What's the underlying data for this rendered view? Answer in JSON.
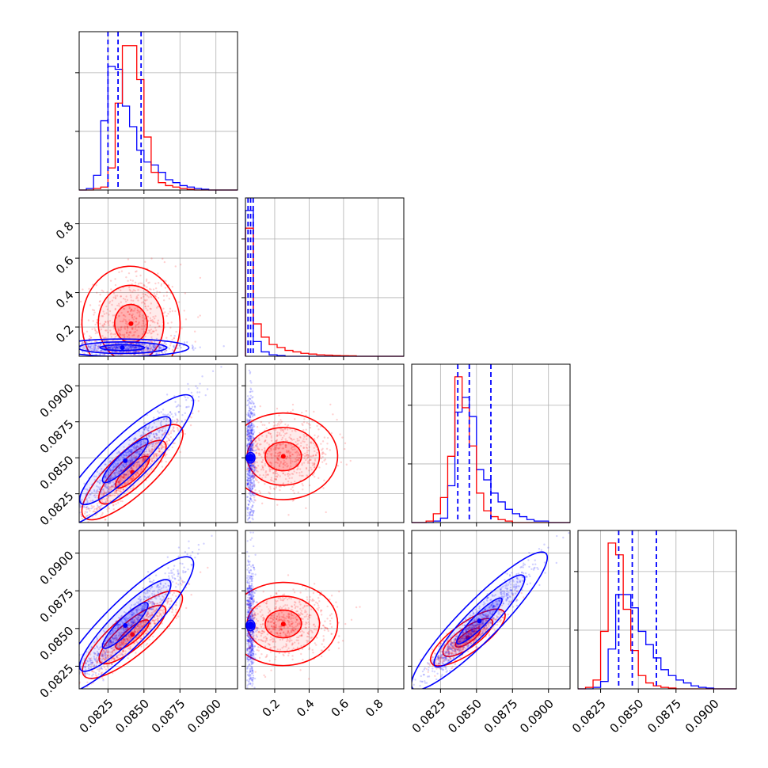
{
  "chart_data": {
    "type": "corner",
    "grid": true,
    "series": [
      {
        "color": "#0000ff"
      },
      {
        "color": "#ff0000"
      }
    ],
    "params": [
      {
        "range": [
          0.0805,
          0.0915
        ],
        "ticks": [
          0.0825,
          0.085,
          0.0875,
          0.09
        ],
        "tick_labels": [
          "0.0825",
          "0.0850",
          "0.0875",
          "0.0900"
        ]
      },
      {
        "range": [
          0.03,
          0.95
        ],
        "ticks": [
          0.2,
          0.4,
          0.6,
          0.8
        ],
        "tick_labels": [
          "0.2",
          "0.4",
          "0.6",
          "0.8"
        ]
      },
      {
        "range": [
          0.0805,
          0.0915
        ],
        "ticks": [
          0.0825,
          0.085,
          0.0875,
          0.09
        ],
        "tick_labels": [
          "0.0825",
          "0.0850",
          "0.0875",
          "0.0900"
        ]
      },
      {
        "range": [
          0.081,
          0.0915
        ],
        "ticks": [
          0.0825,
          0.085,
          0.0875,
          0.09
        ],
        "tick_labels": [
          "0.0825",
          "0.0850",
          "0.0875",
          "0.0900"
        ]
      }
    ],
    "histograms": [
      {
        "bins": [
          0.0805,
          0.081,
          0.0815,
          0.082,
          0.0825,
          0.083,
          0.0835,
          0.084,
          0.0845,
          0.085,
          0.0855,
          0.086,
          0.0865,
          0.087,
          0.0875,
          0.088,
          0.0885,
          0.089,
          0.0895,
          0.09,
          0.0905,
          0.091,
          0.0915
        ],
        "blue": [
          0,
          0.01,
          0.1,
          0.47,
          0.84,
          0.82,
          0.57,
          0.43,
          0.27,
          0.19,
          0.17,
          0.12,
          0.07,
          0.05,
          0.03,
          0.02,
          0.01,
          0.005,
          0,
          0,
          0,
          0
        ],
        "red": [
          0,
          0,
          0.01,
          0.02,
          0.15,
          0.59,
          0.98,
          0.98,
          0.75,
          0.36,
          0.12,
          0.05,
          0.03,
          0.02,
          0.01,
          0.005,
          0,
          0,
          0,
          0,
          0,
          0
        ],
        "quantiles": [
          0.0825,
          0.0832,
          0.0848
        ]
      },
      {
        "bins": [
          0.03,
          0.076,
          0.122,
          0.168,
          0.214,
          0.26,
          0.306,
          0.352,
          0.398,
          0.444,
          0.49,
          0.536,
          0.582,
          0.628,
          0.674,
          0.72,
          0.766,
          0.812,
          0.858,
          0.904,
          0.95
        ],
        "blue": [
          0.99,
          0.1,
          0.03,
          0.01,
          0.005,
          0,
          0,
          0,
          0,
          0,
          0,
          0,
          0,
          0,
          0,
          0,
          0,
          0,
          0,
          0
        ],
        "red": [
          0.87,
          0.22,
          0.13,
          0.08,
          0.06,
          0.04,
          0.03,
          0.02,
          0.015,
          0.01,
          0.008,
          0.005,
          0.004,
          0.003,
          0,
          0,
          0,
          0,
          0,
          0
        ],
        "quantiles": [
          0.045,
          0.06,
          0.075
        ]
      },
      {
        "bins": [
          0.0805,
          0.081,
          0.0815,
          0.082,
          0.0825,
          0.083,
          0.0835,
          0.084,
          0.0845,
          0.085,
          0.0855,
          0.086,
          0.0865,
          0.087,
          0.0875,
          0.088,
          0.0885,
          0.089,
          0.0895,
          0.09,
          0.0905,
          0.091,
          0.0915
        ],
        "blue": [
          0,
          0,
          0,
          0.01,
          0.03,
          0.25,
          0.75,
          0.85,
          0.72,
          0.36,
          0.29,
          0.2,
          0.14,
          0.09,
          0.06,
          0.04,
          0.02,
          0.01,
          0.01,
          0,
          0,
          0
        ],
        "red": [
          0,
          0,
          0.01,
          0.06,
          0.17,
          0.45,
          0.99,
          0.78,
          0.52,
          0.2,
          0.08,
          0.04,
          0.02,
          0.01,
          0,
          0,
          0,
          0,
          0,
          0,
          0,
          0
        ],
        "quantiles": [
          0.0837,
          0.0845,
          0.086
        ]
      },
      {
        "bins": [
          0.081,
          0.0815,
          0.082,
          0.0825,
          0.083,
          0.0835,
          0.084,
          0.0845,
          0.085,
          0.0855,
          0.086,
          0.0865,
          0.087,
          0.0875,
          0.088,
          0.0885,
          0.089,
          0.0895,
          0.09,
          0.0905,
          0.091,
          0.0915
        ],
        "blue": [
          0,
          0,
          0.01,
          0.05,
          0.27,
          0.64,
          0.64,
          0.55,
          0.39,
          0.3,
          0.21,
          0.13,
          0.09,
          0.06,
          0.04,
          0.02,
          0.01,
          0.005,
          0,
          0,
          0
        ],
        "red": [
          0,
          0.01,
          0.06,
          0.39,
          0.99,
          0.91,
          0.54,
          0.26,
          0.09,
          0.04,
          0.02,
          0.01,
          0.005,
          0,
          0,
          0,
          0,
          0,
          0,
          0,
          0
        ],
        "quantiles": [
          0.0837,
          0.0846,
          0.0862
        ]
      }
    ],
    "scatter_2d": [
      {
        "row": 1,
        "col": 0,
        "blue": {
          "center": [
            0.0835,
            0.08
          ],
          "spread": [
            0.0022,
            0.02
          ],
          "corr": 0.0
        },
        "red": {
          "center": [
            0.0841,
            0.22
          ],
          "spread": [
            0.0016,
            0.15
          ],
          "corr": 0.15
        }
      },
      {
        "row": 2,
        "col": 0,
        "blue": {
          "center": [
            0.0837,
            0.0848
          ],
          "spread": [
            0.0022,
            0.0022
          ],
          "corr": 0.96
        },
        "red": {
          "center": [
            0.0842,
            0.084
          ],
          "spread": [
            0.0016,
            0.0016
          ],
          "corr": 0.93
        }
      },
      {
        "row": 2,
        "col": 1,
        "blue": {
          "center": [
            0.06,
            0.085
          ],
          "spread": [
            0.012,
            0.0022
          ],
          "corr": 0.0
        },
        "red": {
          "center": [
            0.25,
            0.0851
          ],
          "spread": [
            0.15,
            0.0012
          ],
          "corr": 0.1
        }
      },
      {
        "row": 3,
        "col": 0,
        "blue": {
          "center": [
            0.0837,
            0.0852
          ],
          "spread": [
            0.0022,
            0.0022
          ],
          "corr": 0.96
        },
        "red": {
          "center": [
            0.0842,
            0.0846
          ],
          "spread": [
            0.0016,
            0.0014
          ],
          "corr": 0.93
        }
      },
      {
        "row": 3,
        "col": 1,
        "blue": {
          "center": [
            0.06,
            0.0852
          ],
          "spread": [
            0.012,
            0.0022
          ],
          "corr": 0.0
        },
        "red": {
          "center": [
            0.25,
            0.0853
          ],
          "spread": [
            0.15,
            0.0011
          ],
          "corr": 0.1
        }
      },
      {
        "row": 3,
        "col": 2,
        "blue": {
          "center": [
            0.0852,
            0.0855
          ],
          "spread": [
            0.0022,
            0.0022
          ],
          "corr": 0.97
        },
        "red": {
          "center": [
            0.0844,
            0.0844
          ],
          "spread": [
            0.0012,
            0.0009
          ],
          "corr": 0.9
        }
      }
    ]
  }
}
